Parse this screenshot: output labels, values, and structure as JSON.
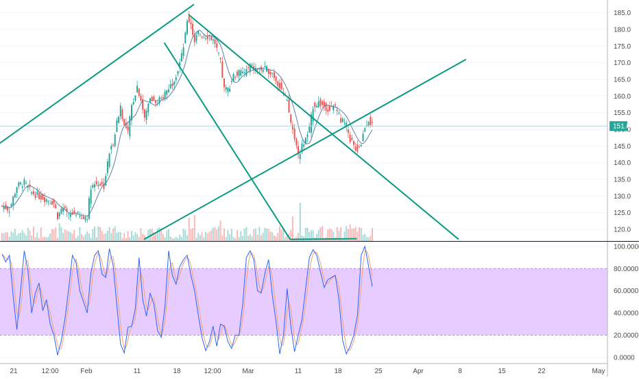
{
  "colors": {
    "up": "#26a69a",
    "down": "#ef5350",
    "trendline": "#089981",
    "ma": "#5b7fa8",
    "price_line": "#9fd8de",
    "price_badge": "#26a69a",
    "stoch_k": "#2962ff",
    "stoch_d": "#f0a274",
    "stoch_band": "#e6ccff",
    "axis_text": "#4a4a4a",
    "grid": "#f0f3fa"
  },
  "chart_data": [
    {
      "type": "candlestick",
      "price_axis": {
        "ticks": [
          "185.0",
          "180.0",
          "175.0",
          "170.0",
          "165.0",
          "160.0",
          "155.0",
          "150.0",
          "145.0",
          "140.0",
          "135.0",
          "130.0",
          "125.0",
          "120.0"
        ],
        "range": [
          116.5,
          188.0
        ]
      },
      "last_price_label": "151.0",
      "last_price": 151.0,
      "time_axis": {
        "labels": [
          "21",
          "12:00",
          "Feb",
          "11",
          "18",
          "12:00",
          "Mar",
          "11",
          "18",
          "25",
          "Apr",
          "8",
          "15",
          "22",
          "May"
        ]
      },
      "price_anchors": [
        [
          0,
          127
        ],
        [
          4,
          126
        ],
        [
          8,
          133
        ],
        [
          12,
          134
        ],
        [
          16,
          131
        ],
        [
          20,
          130
        ],
        [
          24,
          129
        ],
        [
          28,
          128
        ],
        [
          30,
          124
        ],
        [
          33,
          126
        ],
        [
          36,
          124
        ],
        [
          40,
          125
        ],
        [
          43,
          123
        ],
        [
          46,
          124
        ],
        [
          48,
          133
        ],
        [
          52,
          134
        ],
        [
          55,
          133
        ],
        [
          58,
          143
        ],
        [
          60,
          146
        ],
        [
          62,
          152
        ],
        [
          64,
          157
        ],
        [
          66,
          151
        ],
        [
          68,
          149
        ],
        [
          70,
          157
        ],
        [
          73,
          163
        ],
        [
          75,
          159
        ],
        [
          77,
          153
        ],
        [
          80,
          160
        ],
        [
          83,
          158
        ],
        [
          86,
          159
        ],
        [
          88,
          161
        ],
        [
          92,
          164
        ],
        [
          95,
          168
        ],
        [
          97,
          172
        ],
        [
          99,
          178
        ],
        [
          100,
          183
        ],
        [
          102,
          182
        ],
        [
          104,
          176
        ],
        [
          106,
          179
        ],
        [
          109,
          178
        ],
        [
          112,
          178
        ],
        [
          115,
          176
        ],
        [
          118,
          170
        ],
        [
          120,
          162
        ],
        [
          122,
          162
        ],
        [
          125,
          166
        ],
        [
          128,
          167
        ],
        [
          131,
          167
        ],
        [
          134,
          169
        ],
        [
          137,
          168
        ],
        [
          140,
          168
        ],
        [
          143,
          168
        ],
        [
          146,
          167
        ],
        [
          149,
          164
        ],
        [
          151,
          162
        ],
        [
          154,
          158
        ],
        [
          156,
          152
        ],
        [
          158,
          148
        ],
        [
          160,
          142
        ],
        [
          162,
          145
        ],
        [
          164,
          147
        ],
        [
          166,
          150
        ],
        [
          168,
          157
        ],
        [
          171,
          158
        ],
        [
          174,
          157
        ],
        [
          177,
          156
        ],
        [
          180,
          157
        ],
        [
          183,
          153
        ],
        [
          186,
          151
        ],
        [
          188,
          147
        ],
        [
          190,
          145
        ],
        [
          192,
          144
        ],
        [
          194,
          146
        ],
        [
          196,
          151
        ],
        [
          198,
          153
        ],
        [
          200,
          151
        ]
      ],
      "volume_spikes": [
        [
          31,
          13
        ],
        [
          60,
          9
        ],
        [
          81,
          9
        ],
        [
          101,
          17
        ],
        [
          104,
          19
        ],
        [
          118,
          15
        ],
        [
          124,
          9
        ],
        [
          157,
          18
        ],
        [
          161,
          28
        ],
        [
          183,
          10
        ],
        [
          188,
          12
        ]
      ],
      "moving_average_period": 8
    },
    {
      "type": "line",
      "name": "stochastic",
      "axis": {
        "ticks": [
          "100.0000",
          "80.0000",
          "60.0000",
          "40.0000",
          "20.0000",
          "0.0000"
        ],
        "range": [
          -5,
          103
        ]
      },
      "upper_band": 80,
      "lower_band": 20,
      "k_anchors": [
        [
          0,
          93
        ],
        [
          2,
          86
        ],
        [
          4,
          92
        ],
        [
          6,
          55
        ],
        [
          8,
          25
        ],
        [
          10,
          60
        ],
        [
          12,
          96
        ],
        [
          14,
          78
        ],
        [
          16,
          40
        ],
        [
          18,
          58
        ],
        [
          20,
          67
        ],
        [
          22,
          42
        ],
        [
          24,
          52
        ],
        [
          26,
          30
        ],
        [
          28,
          20
        ],
        [
          30,
          2
        ],
        [
          32,
          15
        ],
        [
          34,
          35
        ],
        [
          36,
          62
        ],
        [
          38,
          92
        ],
        [
          40,
          85
        ],
        [
          42,
          60
        ],
        [
          44,
          50
        ],
        [
          46,
          40
        ],
        [
          48,
          76
        ],
        [
          50,
          92
        ],
        [
          52,
          96
        ],
        [
          54,
          75
        ],
        [
          56,
          72
        ],
        [
          58,
          98
        ],
        [
          60,
          83
        ],
        [
          62,
          47
        ],
        [
          64,
          12
        ],
        [
          66,
          4
        ],
        [
          68,
          27
        ],
        [
          70,
          28
        ],
        [
          72,
          44
        ],
        [
          74,
          90
        ],
        [
          76,
          52
        ],
        [
          78,
          37
        ],
        [
          80,
          58
        ],
        [
          82,
          48
        ],
        [
          84,
          24
        ],
        [
          86,
          18
        ],
        [
          88,
          46
        ],
        [
          90,
          96
        ],
        [
          92,
          74
        ],
        [
          94,
          66
        ],
        [
          96,
          82
        ],
        [
          98,
          88
        ],
        [
          100,
          92
        ],
        [
          102,
          74
        ],
        [
          104,
          60
        ],
        [
          106,
          38
        ],
        [
          108,
          18
        ],
        [
          110,
          6
        ],
        [
          112,
          14
        ],
        [
          114,
          28
        ],
        [
          116,
          10
        ],
        [
          118,
          30
        ],
        [
          120,
          28
        ],
        [
          122,
          14
        ],
        [
          124,
          8
        ],
        [
          126,
          20
        ],
        [
          128,
          20
        ],
        [
          130,
          48
        ],
        [
          132,
          90
        ],
        [
          134,
          96
        ],
        [
          136,
          88
        ],
        [
          138,
          60
        ],
        [
          140,
          58
        ],
        [
          142,
          76
        ],
        [
          144,
          88
        ],
        [
          146,
          56
        ],
        [
          148,
          32
        ],
        [
          150,
          3
        ],
        [
          152,
          20
        ],
        [
          154,
          62
        ],
        [
          156,
          28
        ],
        [
          158,
          5
        ],
        [
          160,
          20
        ],
        [
          162,
          34
        ],
        [
          164,
          62
        ],
        [
          166,
          90
        ],
        [
          168,
          97
        ],
        [
          170,
          92
        ],
        [
          172,
          77
        ],
        [
          174,
          63
        ],
        [
          176,
          70
        ],
        [
          178,
          72
        ],
        [
          180,
          74
        ],
        [
          182,
          52
        ],
        [
          184,
          15
        ],
        [
          186,
          3
        ],
        [
          188,
          10
        ],
        [
          190,
          20
        ],
        [
          192,
          38
        ],
        [
          194,
          92
        ],
        [
          196,
          100
        ],
        [
          198,
          82
        ],
        [
          200,
          64
        ]
      ]
    }
  ],
  "trendlines": [
    {
      "name": "upper-left",
      "from": [
        -3,
        145
      ],
      "to": [
        104,
        187.5
      ]
    },
    {
      "name": "descending-upper",
      "from": [
        101,
        184.5
      ],
      "to": [
        247,
        117
      ]
    },
    {
      "name": "descending-steep",
      "from": [
        88,
        176
      ],
      "to": [
        156,
        117
      ]
    },
    {
      "name": "ascending-support",
      "from": [
        77,
        117
      ],
      "to": [
        251,
        171
      ]
    },
    {
      "name": "flat-base",
      "from": [
        156,
        117
      ],
      "to": [
        192,
        117.2
      ]
    }
  ]
}
